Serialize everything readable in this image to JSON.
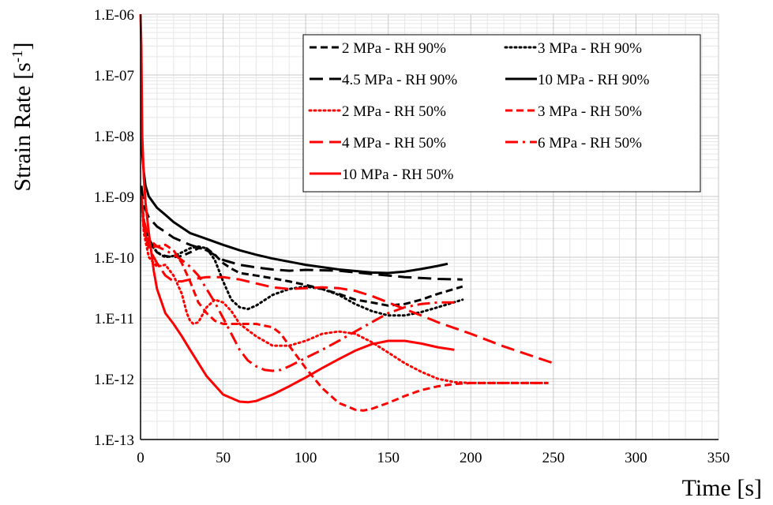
{
  "chart_data": {
    "type": "line",
    "title": "",
    "xlabel": "Time [s]",
    "ylabel": "Strain Rate [s",
    "ylabel_sup": "-1",
    "ylabel_close": "]",
    "xlim": [
      0,
      350
    ],
    "ylim": [
      1e-13,
      1e-06
    ],
    "y_scale": "log",
    "x_ticks": [
      0,
      50,
      100,
      150,
      200,
      250,
      300,
      350
    ],
    "x_tick_labels": [
      "0",
      "50",
      "100",
      "150",
      "200",
      "250",
      "300",
      "350"
    ],
    "y_ticks": [
      1e-13,
      1e-12,
      1e-11,
      1e-10,
      1e-09,
      1e-08,
      1e-07,
      1e-06
    ],
    "y_tick_labels": [
      "1.E-13",
      "1.E-12",
      "1.E-11",
      "1.E-10",
      "1.E-09",
      "1.E-08",
      "1.E-07",
      "1.E-06"
    ],
    "grid": true,
    "legend_position": "top-right",
    "series": [
      {
        "name": "2 MPa - RH 90%",
        "color": "#000000",
        "dash": "short-dash",
        "x": [
          0.5,
          2,
          5,
          10,
          15,
          20,
          25,
          30,
          35,
          40,
          45,
          50,
          55,
          60,
          70,
          80,
          90,
          100,
          110,
          120,
          130,
          140,
          150,
          160,
          170,
          180,
          195
        ],
        "y": [
          1e-09,
          4e-10,
          2e-10,
          1.2e-10,
          1.05e-10,
          1e-10,
          1.05e-10,
          1.2e-10,
          1.4e-10,
          1.4e-10,
          1.1e-10,
          8e-11,
          6.5e-11,
          5.5e-11,
          5e-11,
          4.5e-11,
          4e-11,
          3.5e-11,
          3e-11,
          2.5e-11,
          2e-11,
          1.8e-11,
          1.6e-11,
          1.7e-11,
          2e-11,
          2.5e-11,
          3.3e-11
        ]
      },
      {
        "name": "3 MPa - RH 90%",
        "color": "#000000",
        "dash": "dot",
        "x": [
          0.5,
          2,
          5,
          10,
          15,
          20,
          25,
          30,
          35,
          40,
          45,
          50,
          55,
          60,
          65,
          70,
          80,
          90,
          100,
          110,
          120,
          130,
          140,
          150,
          160,
          170,
          180,
          195
        ],
        "y": [
          1e-09,
          3.5e-10,
          1.8e-10,
          1.2e-10,
          1e-10,
          1.05e-10,
          1.2e-10,
          1.4e-10,
          1.5e-10,
          1.4e-10,
          9e-11,
          4e-11,
          2e-11,
          1.5e-11,
          1.4e-11,
          1.6e-11,
          2.4e-11,
          3e-11,
          3.3e-11,
          3e-11,
          2.4e-11,
          1.7e-11,
          1.3e-11,
          1.1e-11,
          1.1e-11,
          1.25e-11,
          1.5e-11,
          2e-11
        ]
      },
      {
        "name": "4.5 MPa - RH 90%",
        "color": "#000000",
        "dash": "long-dash",
        "x": [
          0.5,
          2,
          5,
          10,
          15,
          20,
          30,
          40,
          50,
          60,
          70,
          80,
          90,
          100,
          120,
          140,
          160,
          180,
          195
        ],
        "y": [
          1.5e-09,
          7e-10,
          4.5e-10,
          3.2e-10,
          2.6e-10,
          2.1e-10,
          1.6e-10,
          1.3e-10,
          9e-11,
          7.5e-11,
          6.8e-11,
          6.3e-11,
          6e-11,
          6.2e-11,
          6e-11,
          5.3e-11,
          4.7e-11,
          4.4e-11,
          4.3e-11
        ]
      },
      {
        "name": "10 MPa - RH 90%",
        "color": "#000000",
        "dash": "solid",
        "x": [
          0.5,
          1,
          2,
          3,
          5,
          10,
          15,
          20,
          30,
          40,
          50,
          60,
          70,
          80,
          100,
          120,
          140,
          150,
          160,
          170,
          180,
          186
        ],
        "y": [
          2e-08,
          5e-09,
          2.5e-09,
          1.5e-09,
          1e-09,
          6.5e-10,
          5e-10,
          3.8e-10,
          2.5e-10,
          2e-10,
          1.6e-10,
          1.3e-10,
          1.1e-10,
          9.5e-11,
          7.5e-11,
          6.3e-11,
          5.6e-11,
          5.5e-11,
          5.8e-11,
          6.4e-11,
          7.2e-11,
          7.8e-11
        ]
      },
      {
        "name": "2 MPa - RH 50%",
        "color": "#ff0000",
        "dash": "dot",
        "x": [
          0.5,
          2,
          5,
          10,
          15,
          20,
          25,
          28,
          30,
          32,
          35,
          40,
          45,
          50,
          55,
          60,
          70,
          80,
          90,
          100,
          110,
          120,
          130,
          140,
          150,
          160,
          170,
          180,
          190,
          200,
          220,
          247
        ],
        "y": [
          1e-09,
          2.5e-10,
          1e-10,
          7e-11,
          7.5e-11,
          5e-11,
          2.5e-11,
          1.2e-11,
          9e-12,
          8e-12,
          8.5e-12,
          1.5e-11,
          2e-11,
          1.8e-11,
          1.3e-11,
          8e-12,
          5e-12,
          3.5e-12,
          3.5e-12,
          4.2e-12,
          5.5e-12,
          6e-12,
          5.5e-12,
          4e-12,
          2.7e-12,
          1.8e-12,
          1.3e-12,
          1e-12,
          8.8e-13,
          8.5e-13,
          8.5e-13,
          8.5e-13
        ]
      },
      {
        "name": "3 MPa - RH 50%",
        "color": "#ff0000",
        "dash": "short-dash",
        "x": [
          0.5,
          2,
          5,
          10,
          15,
          20,
          25,
          30,
          35,
          40,
          45,
          50,
          60,
          70,
          80,
          85,
          90,
          100,
          110,
          120,
          130,
          135,
          140,
          150,
          160,
          170,
          180,
          190,
          200,
          220,
          247
        ],
        "y": [
          1e-09,
          3e-10,
          1.5e-10,
          1.5e-10,
          1.6e-10,
          1.3e-10,
          8e-11,
          4e-11,
          1.8e-11,
          1.2e-11,
          9e-12,
          8e-12,
          8e-12,
          8e-12,
          7e-12,
          5.5e-12,
          3.5e-12,
          1.5e-12,
          7e-13,
          4e-13,
          3.1e-13,
          3e-13,
          3.2e-13,
          4e-13,
          5.2e-13,
          6.5e-13,
          7.5e-13,
          8.2e-13,
          8.5e-13,
          8.5e-13,
          8.5e-13
        ]
      },
      {
        "name": "4 MPa - RH 50%",
        "color": "#ff0000",
        "dash": "long-dash",
        "x": [
          0.5,
          2,
          5,
          10,
          15,
          20,
          25,
          30,
          35,
          40,
          50,
          60,
          70,
          80,
          90,
          100,
          110,
          120,
          130,
          140,
          150,
          160,
          170,
          180,
          200,
          220,
          250
        ],
        "y": [
          1e-09,
          3e-10,
          1.4e-10,
          8e-11,
          5e-11,
          4e-11,
          4e-11,
          4.3e-11,
          4.5e-11,
          4.7e-11,
          4.7e-11,
          4.3e-11,
          3.7e-11,
          3.2e-11,
          3e-11,
          3.1e-11,
          3.2e-11,
          3.1e-11,
          2.8e-11,
          2.3e-11,
          1.8e-11,
          1.4e-11,
          1.1e-11,
          8.5e-12,
          5.5e-12,
          3.4e-12,
          1.8e-12
        ]
      },
      {
        "name": "6 MPa - RH 50%",
        "color": "#ff0000",
        "dash": "dash-dot",
        "x": [
          0.5,
          2,
          5,
          10,
          15,
          20,
          25,
          30,
          35,
          40,
          45,
          50,
          55,
          60,
          65,
          70,
          75,
          80,
          85,
          90,
          100,
          110,
          120,
          130,
          140,
          150,
          160,
          170,
          180,
          190
        ],
        "y": [
          1e-09,
          4e-10,
          2e-10,
          1.5e-10,
          1.3e-10,
          1.1e-10,
          9e-11,
          7e-11,
          5e-11,
          3e-11,
          1.8e-11,
          1e-11,
          5.5e-12,
          3e-12,
          2e-12,
          1.6e-12,
          1.4e-12,
          1.35e-12,
          1.4e-12,
          1.6e-12,
          2.2e-12,
          3e-12,
          4.2e-12,
          6e-12,
          8.5e-12,
          1.2e-11,
          1.5e-11,
          1.7e-11,
          1.8e-11,
          1.8e-11
        ]
      },
      {
        "name": "10 MPa - RH 50%",
        "color": "#ff0000",
        "dash": "solid",
        "x": [
          0,
          0.5,
          1,
          2,
          3,
          5,
          8,
          10,
          15,
          20,
          25,
          30,
          40,
          50,
          60,
          65,
          70,
          80,
          90,
          100,
          110,
          120,
          130,
          140,
          150,
          160,
          170,
          180,
          190
        ],
        "y": [
          1e-06,
          3e-07,
          1e-08,
          2e-09,
          8e-10,
          2.5e-10,
          6e-11,
          3e-11,
          1.2e-11,
          8e-12,
          5e-12,
          3e-12,
          1.1e-12,
          5.5e-13,
          4.2e-13,
          4.1e-13,
          4.3e-13,
          5.5e-13,
          7.5e-13,
          1.05e-12,
          1.5e-12,
          2.1e-12,
          2.9e-12,
          3.7e-12,
          4.2e-12,
          4.2e-12,
          3.8e-12,
          3.3e-12,
          3e-12
        ]
      }
    ]
  }
}
